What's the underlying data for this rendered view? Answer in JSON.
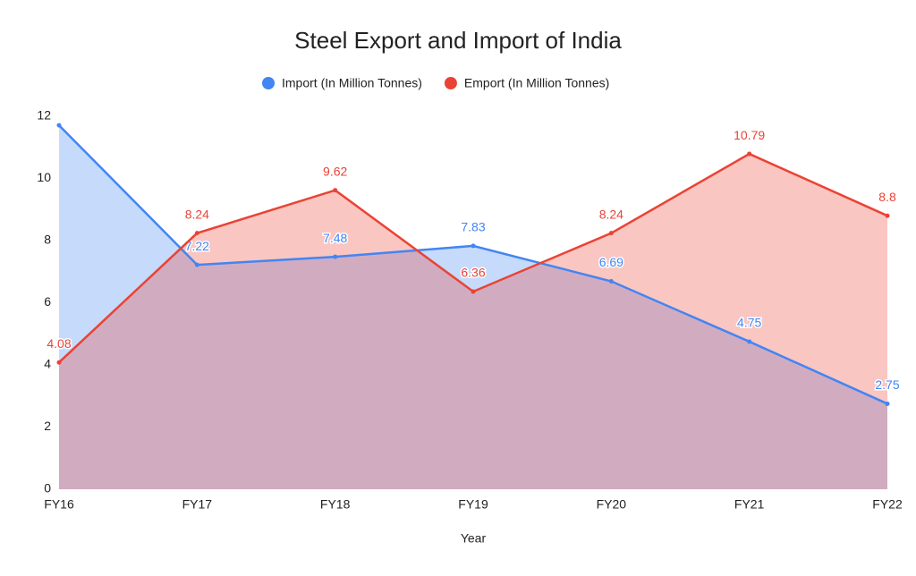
{
  "chart_data": {
    "type": "area",
    "title": "Steel Export and Import of India",
    "x_label": "Year",
    "categories": [
      "FY16",
      "FY17",
      "FY18",
      "FY19",
      "FY20",
      "FY21",
      "FY22"
    ],
    "series": [
      {
        "name": "Import (In Million Tonnes)",
        "color": "#4285f4",
        "values": [
          11.71,
          7.22,
          7.48,
          7.83,
          6.69,
          4.75,
          2.75
        ],
        "value_labels": [
          null,
          "7.22",
          "7.48",
          "7.83",
          "6.69",
          "4.75",
          "2.75"
        ]
      },
      {
        "name": "Emport (In Million Tonnes)",
        "color": "#ea4335",
        "values": [
          4.08,
          8.24,
          9.62,
          6.36,
          8.24,
          10.79,
          8.8
        ],
        "value_labels": [
          "4.08",
          "8.24",
          "9.62",
          "6.36",
          "8.24",
          "10.79",
          "8.8"
        ]
      }
    ],
    "ylim": [
      0,
      12
    ],
    "yticks": [
      0,
      2,
      4,
      6,
      8,
      10,
      12
    ],
    "legend": "top"
  }
}
